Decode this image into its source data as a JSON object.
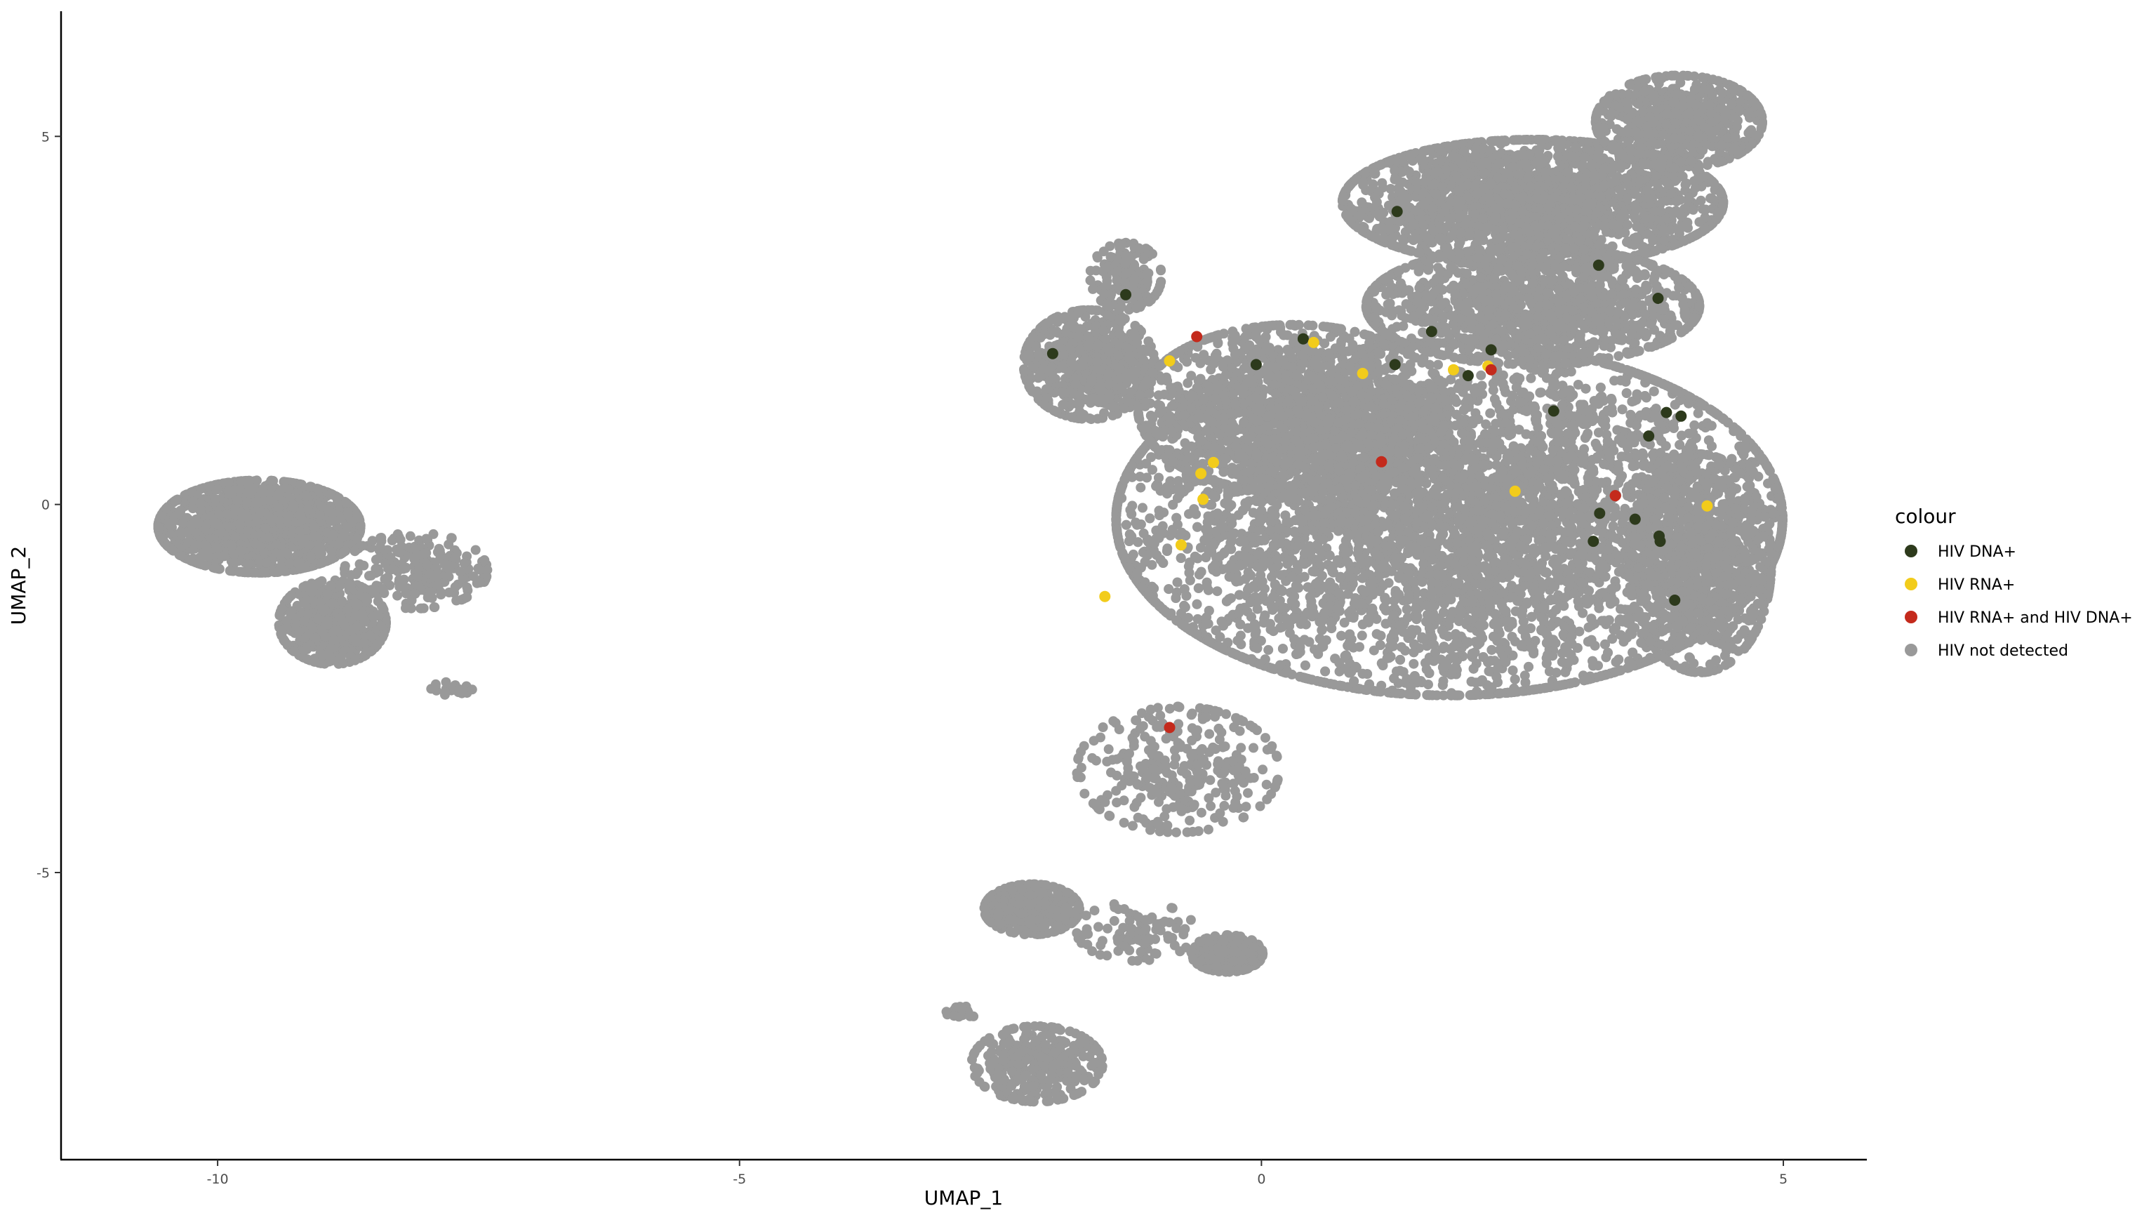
{
  "chart_data": {
    "type": "scatter",
    "xlabel": "UMAP_1",
    "ylabel": "UMAP_2",
    "xlim": [
      -11.5,
      5.8
    ],
    "ylim": [
      -8.9,
      6.7
    ],
    "x_ticks": [
      -10,
      -5,
      0,
      5
    ],
    "y_ticks": [
      -5,
      0,
      5
    ],
    "x_tick_labels": [
      "-10",
      "-5",
      "0",
      "5"
    ],
    "y_tick_labels": [
      "-5",
      "0",
      "5"
    ],
    "grid": false,
    "legend": {
      "title": "colour",
      "placement": "right"
    },
    "series": [
      {
        "name": "HIV DNA+",
        "color": "#2d3a1c",
        "points": [
          [
            -2.0,
            2.05
          ],
          [
            -1.3,
            2.85
          ],
          [
            -0.05,
            1.9
          ],
          [
            0.4,
            2.25
          ],
          [
            1.28,
            1.9
          ],
          [
            1.3,
            3.98
          ],
          [
            1.63,
            2.35
          ],
          [
            1.98,
            1.75
          ],
          [
            2.2,
            2.1
          ],
          [
            2.8,
            1.27
          ],
          [
            3.23,
            3.25
          ],
          [
            3.18,
            -0.5
          ],
          [
            3.24,
            -0.12
          ],
          [
            3.58,
            -0.2
          ],
          [
            3.71,
            0.93
          ],
          [
            3.8,
            2.8
          ],
          [
            3.81,
            -0.43
          ],
          [
            3.82,
            -0.5
          ],
          [
            3.88,
            1.25
          ],
          [
            3.96,
            -1.3
          ],
          [
            4.02,
            1.2
          ]
        ]
      },
      {
        "name": "HIV RNA+",
        "color": "#f2cc1b",
        "points": [
          [
            -1.5,
            -1.25
          ],
          [
            -0.88,
            1.95
          ],
          [
            -0.77,
            -0.55
          ],
          [
            -0.58,
            0.42
          ],
          [
            -0.56,
            0.07
          ],
          [
            -0.46,
            0.57
          ],
          [
            0.5,
            2.2
          ],
          [
            0.97,
            1.78
          ],
          [
            1.84,
            1.83
          ],
          [
            2.17,
            1.88
          ],
          [
            2.43,
            0.18
          ],
          [
            4.27,
            -0.02
          ]
        ]
      },
      {
        "name": "HIV RNA+ and HIV DNA+",
        "color": "#c42a1c",
        "points": [
          [
            -0.62,
            2.28
          ],
          [
            -0.88,
            -3.03
          ],
          [
            1.15,
            0.58
          ],
          [
            2.2,
            1.83
          ],
          [
            3.39,
            0.12
          ]
        ]
      },
      {
        "name": "HIV not detected",
        "color": "#999999",
        "clusters": [
          {
            "cx": -9.6,
            "cy": -0.3,
            "rx": 0.85,
            "ry": 0.55,
            "n": 1500
          },
          {
            "cx": -8.9,
            "cy": -1.6,
            "rx": 0.45,
            "ry": 0.5,
            "n": 500
          },
          {
            "cx": -8.1,
            "cy": -0.9,
            "rx": 0.6,
            "ry": 0.45,
            "n": 240
          },
          {
            "cx": -7.75,
            "cy": -2.5,
            "rx": 0.18,
            "ry": 0.08,
            "n": 18
          },
          {
            "cx": -1.65,
            "cy": 1.9,
            "rx": 0.55,
            "ry": 0.65,
            "n": 650
          },
          {
            "cx": -1.3,
            "cy": 3.1,
            "rx": 0.3,
            "ry": 0.4,
            "n": 160
          },
          {
            "cx": 1.8,
            "cy": -0.2,
            "rx": 2.8,
            "ry": 2.1,
            "n": 9000
          },
          {
            "cx": 0.3,
            "cy": 1.3,
            "rx": 1.3,
            "ry": 1.0,
            "n": 1500
          },
          {
            "cx": 2.6,
            "cy": 4.1,
            "rx": 1.6,
            "ry": 0.75,
            "n": 2200
          },
          {
            "cx": 4.0,
            "cy": 5.2,
            "rx": 0.7,
            "ry": 0.55,
            "n": 700
          },
          {
            "cx": 2.6,
            "cy": 2.7,
            "rx": 1.4,
            "ry": 0.7,
            "n": 1300
          },
          {
            "cx": 4.2,
            "cy": -0.8,
            "rx": 0.6,
            "ry": 1.3,
            "n": 900
          },
          {
            "cx": -0.8,
            "cy": -3.6,
            "rx": 0.85,
            "ry": 0.75,
            "n": 320
          },
          {
            "cx": -2.2,
            "cy": -5.5,
            "rx": 0.4,
            "ry": 0.3,
            "n": 420
          },
          {
            "cx": -0.33,
            "cy": -6.1,
            "rx": 0.3,
            "ry": 0.22,
            "n": 280
          },
          {
            "cx": -2.15,
            "cy": -7.6,
            "rx": 0.55,
            "ry": 0.45,
            "n": 380
          },
          {
            "cx": -1.2,
            "cy": -5.8,
            "rx": 0.5,
            "ry": 0.35,
            "n": 90
          },
          {
            "cx": -2.85,
            "cy": -6.9,
            "rx": 0.15,
            "ry": 0.07,
            "n": 22
          }
        ]
      }
    ]
  }
}
